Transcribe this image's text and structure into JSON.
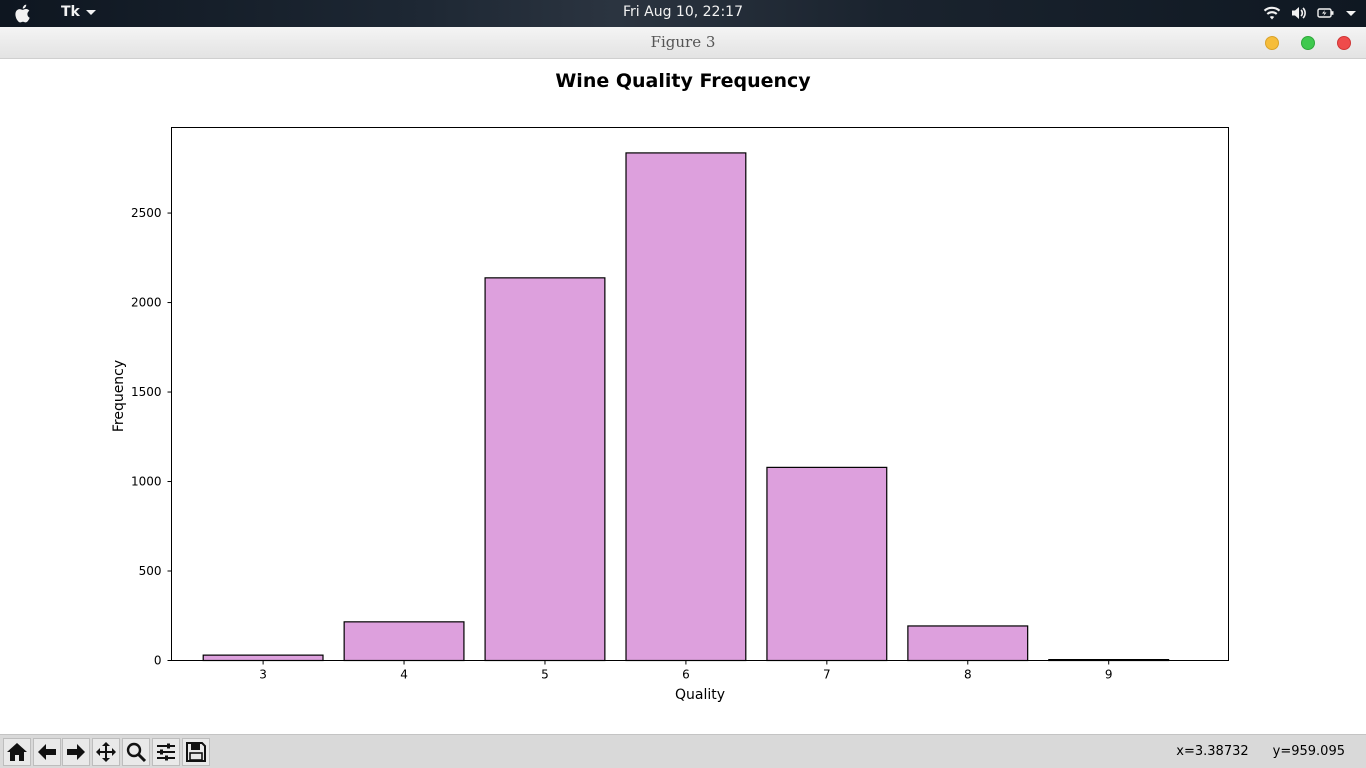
{
  "menubar": {
    "app_name": "Tk",
    "clock": "Fri Aug 10, 22:17",
    "icons": [
      "apple-icon",
      "wifi-icon",
      "volume-icon",
      "battery-icon",
      "chevron-down-icon"
    ]
  },
  "window": {
    "title": "Figure 3"
  },
  "toolbar": {
    "buttons": [
      "home-icon",
      "back-arrow-icon",
      "forward-arrow-icon",
      "pan-icon",
      "zoom-icon",
      "configure-subplots-icon",
      "save-icon"
    ],
    "x_readout": "x=3.38732",
    "y_readout": "y=959.095"
  },
  "chart_data": {
    "type": "bar",
    "title": "Wine Quality Frequency",
    "xlabel": "Quality",
    "ylabel": "Frequency",
    "categories": [
      "3",
      "4",
      "5",
      "6",
      "7",
      "8",
      "9"
    ],
    "x": [
      3,
      4,
      5,
      6,
      7,
      8,
      9
    ],
    "values": [
      30,
      216,
      2138,
      2836,
      1079,
      193,
      5
    ],
    "ylim": [
      0,
      2978
    ],
    "xlim": [
      2.35,
      9.85
    ],
    "yticks": [
      0,
      500,
      1000,
      1500,
      2000,
      2500
    ],
    "bar_width": 0.85,
    "bar_color": "#dda0dd",
    "edge_color": "#000000",
    "grid": false,
    "legend": "none"
  }
}
